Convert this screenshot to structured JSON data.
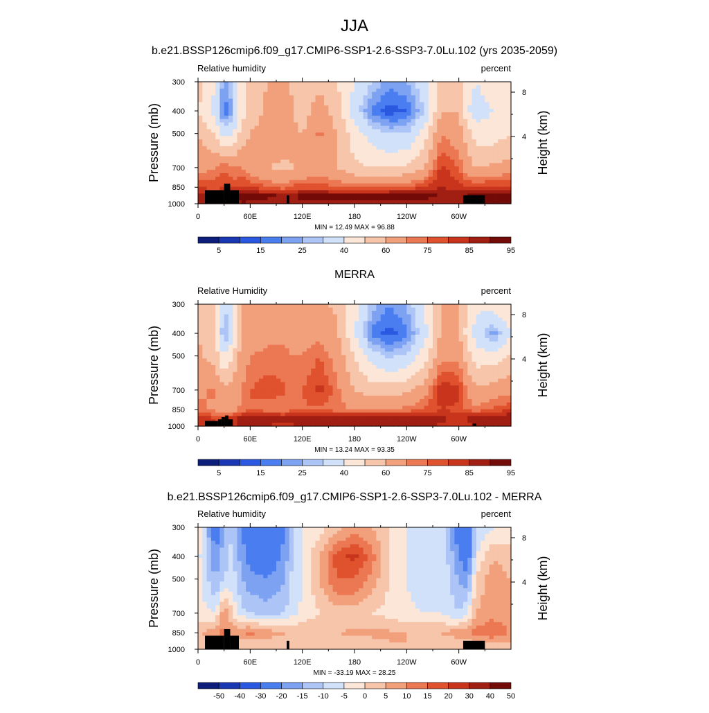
{
  "figure_title": "JJA",
  "colors": {
    "scale_abs": [
      "#0c1e7a",
      "#1a37b4",
      "#2a58e0",
      "#4a7ef0",
      "#7ea2f2",
      "#acc4f6",
      "#d2e1fa",
      "#fbe6d8",
      "#f7c5aa",
      "#f2a07b",
      "#ec7853",
      "#e0512e",
      "#c8351c",
      "#a11e12",
      "#730b08"
    ],
    "scale_diff": [
      "#0c1e7a",
      "#1a37b4",
      "#2a58e0",
      "#4a7ef0",
      "#7ea2f2",
      "#acc4f6",
      "#d2e1fa",
      "#fbe6d8",
      "#f7c5aa",
      "#f2a07b",
      "#ec7853",
      "#e0512e",
      "#c8351c",
      "#a11e12",
      "#730b08"
    ],
    "topography": "#000000"
  },
  "chart_data": [
    {
      "type": "heatmap",
      "title": "b.e21.BSSP126cmip6.f09_g17.CMIP6-SSP1-2.6-SSP3-7.0Lu.102 (yrs 2035-2059)",
      "left_label": "Relative humidity",
      "right_label": "percent",
      "ylabel": "Pressure (mb)",
      "ylabel_right": "Height (km)",
      "x_ticks": [
        "0",
        "60E",
        "120E",
        "180",
        "120W",
        "60W"
      ],
      "y_ticks": [
        "300",
        "400",
        "500",
        "700",
        "850",
        "1000"
      ],
      "y_right_ticks": [
        "8",
        "4"
      ],
      "stats": "MIN =  12.49  MAX =  96.88",
      "colorbar_levels": [
        "5",
        "15",
        "25",
        "40",
        "60",
        "75",
        "85",
        "95"
      ],
      "colorbar_kind": "abs",
      "field": {
        "lon": [
          0,
          20,
          30,
          40,
          50,
          60,
          80,
          100,
          110,
          120,
          140,
          160,
          180,
          200,
          220,
          240,
          260,
          280,
          300,
          310,
          320,
          340,
          360
        ],
        "p": [
          300,
          400,
          500,
          700,
          850,
          925,
          1000
        ],
        "values": [
          [
            55,
            40,
            22,
            30,
            45,
            55,
            60,
            62,
            58,
            55,
            58,
            50,
            40,
            30,
            22,
            25,
            35,
            55,
            60,
            45,
            40,
            45,
            50
          ],
          [
            50,
            35,
            15,
            25,
            45,
            55,
            62,
            65,
            60,
            55,
            65,
            55,
            35,
            18,
            12,
            15,
            30,
            60,
            60,
            40,
            35,
            40,
            45
          ],
          [
            60,
            50,
            35,
            40,
            55,
            60,
            65,
            65,
            62,
            60,
            72,
            60,
            45,
            35,
            30,
            30,
            45,
            70,
            65,
            55,
            45,
            45,
            50
          ],
          [
            65,
            70,
            75,
            70,
            70,
            65,
            60,
            58,
            60,
            60,
            65,
            60,
            52,
            50,
            50,
            52,
            60,
            82,
            75,
            65,
            60,
            62,
            65
          ],
          [
            80,
            78,
            80,
            78,
            82,
            80,
            75,
            72,
            78,
            78,
            78,
            76,
            75,
            75,
            75,
            76,
            80,
            85,
            82,
            80,
            80,
            82,
            82
          ],
          [
            88,
            85,
            88,
            90,
            92,
            92,
            92,
            90,
            90,
            92,
            92,
            92,
            92,
            93,
            94,
            95,
            92,
            90,
            88,
            90,
            93,
            95,
            95
          ],
          [
            88,
            85,
            86,
            88,
            90,
            88,
            86,
            85,
            86,
            88,
            88,
            88,
            88,
            88,
            88,
            88,
            88,
            86,
            85,
            88,
            90,
            92,
            92
          ]
        ]
      },
      "topo_blocks": [
        [
          8,
          30,
          875,
          1000
        ],
        [
          30,
          37,
          820,
          1000
        ],
        [
          37,
          47,
          875,
          1000
        ],
        [
          102,
          105,
          920,
          1000
        ],
        [
          305,
          330,
          920,
          1000
        ]
      ]
    },
    {
      "type": "heatmap",
      "title": "MERRA",
      "left_label": "Relative Humidity",
      "right_label": "percent",
      "ylabel": "Pressure (mb)",
      "ylabel_right": "Height (km)",
      "x_ticks": [
        "0",
        "60E",
        "120E",
        "180",
        "120W",
        "60W"
      ],
      "y_ticks": [
        "300",
        "400",
        "500",
        "700",
        "850",
        "1000"
      ],
      "y_right_ticks": [
        "8",
        "4"
      ],
      "stats": "MIN =  13.24  MAX =  93.35",
      "colorbar_levels": [
        "5",
        "15",
        "25",
        "40",
        "60",
        "75",
        "85",
        "95"
      ],
      "colorbar_kind": "abs",
      "field": {
        "lon": [
          0,
          20,
          30,
          40,
          50,
          60,
          80,
          100,
          110,
          120,
          140,
          160,
          180,
          200,
          220,
          240,
          260,
          280,
          300,
          310,
          320,
          340,
          360
        ],
        "p": [
          300,
          400,
          500,
          700,
          850,
          925,
          1000
        ],
        "values": [
          [
            55,
            50,
            30,
            40,
            60,
            65,
            65,
            65,
            62,
            62,
            62,
            58,
            45,
            28,
            20,
            25,
            40,
            60,
            60,
            50,
            42,
            45,
            50
          ],
          [
            60,
            50,
            22,
            35,
            60,
            65,
            68,
            68,
            66,
            66,
            68,
            62,
            40,
            18,
            13,
            18,
            35,
            62,
            62,
            45,
            35,
            22,
            40
          ],
          [
            62,
            55,
            40,
            50,
            65,
            70,
            72,
            72,
            70,
            70,
            75,
            66,
            50,
            35,
            28,
            32,
            45,
            68,
            68,
            55,
            45,
            45,
            52
          ],
          [
            68,
            72,
            62,
            66,
            70,
            75,
            78,
            76,
            72,
            75,
            82,
            72,
            60,
            55,
            56,
            58,
            65,
            85,
            82,
            70,
            62,
            65,
            68
          ],
          [
            72,
            68,
            60,
            65,
            72,
            75,
            72,
            70,
            75,
            74,
            74,
            72,
            70,
            70,
            70,
            72,
            76,
            80,
            78,
            74,
            72,
            76,
            80
          ],
          [
            84,
            80,
            78,
            84,
            88,
            90,
            90,
            88,
            88,
            90,
            90,
            90,
            90,
            90,
            90,
            90,
            88,
            86,
            84,
            86,
            88,
            90,
            90
          ],
          [
            82,
            80,
            80,
            82,
            86,
            86,
            84,
            82,
            84,
            86,
            86,
            86,
            86,
            86,
            86,
            86,
            86,
            84,
            82,
            84,
            86,
            88,
            88
          ]
        ]
      },
      "topo_blocks": [
        [
          8,
          23,
          950,
          1000
        ],
        [
          23,
          27,
          935,
          1000
        ],
        [
          27,
          31,
          915,
          1000
        ],
        [
          31,
          35,
          900,
          1000
        ],
        [
          35,
          40,
          935,
          1000
        ],
        [
          316,
          320,
          975,
          1000
        ]
      ]
    },
    {
      "type": "heatmap",
      "title": "b.e21.BSSP126cmip6.f09_g17.CMIP6-SSP1-2.6-SSP3-7.0Lu.102 - MERRA",
      "left_label": "Relative humidity",
      "right_label": "percent",
      "ylabel": "Pressure (mb)",
      "ylabel_right": "Height (km)",
      "x_ticks": [
        "0",
        "60E",
        "120E",
        "180",
        "120W",
        "60W"
      ],
      "y_ticks": [
        "300",
        "400",
        "500",
        "700",
        "850",
        "1000"
      ],
      "y_right_ticks": [
        "8",
        "4"
      ],
      "stats": "MIN = -33.19  MAX =  28.25",
      "colorbar_levels": [
        "-50",
        "-40",
        "-30",
        "-20",
        "-15",
        "-10",
        "-5",
        "0",
        "5",
        "10",
        "15",
        "20",
        "30",
        "40",
        "50"
      ],
      "colorbar_kind": "diff",
      "field": {
        "lon": [
          0,
          20,
          30,
          40,
          50,
          60,
          80,
          100,
          110,
          120,
          140,
          160,
          180,
          200,
          220,
          240,
          260,
          280,
          300,
          310,
          320,
          340,
          360
        ],
        "p": [
          300,
          400,
          500,
          700,
          850,
          925,
          1000
        ],
        "values": [
          [
            0,
            -25,
            -15,
            -10,
            -20,
            -25,
            -30,
            -20,
            -10,
            -5,
            -2,
            2,
            8,
            5,
            0,
            -5,
            -5,
            -5,
            -25,
            -30,
            -10,
            -5,
            -2
          ],
          [
            -3,
            -20,
            -12,
            -8,
            -18,
            -22,
            -25,
            -18,
            -8,
            -5,
            5,
            18,
            22,
            12,
            0,
            -5,
            -8,
            -5,
            -20,
            -25,
            -5,
            5,
            2
          ],
          [
            -2,
            -15,
            -10,
            -8,
            -15,
            -18,
            -20,
            -15,
            -8,
            -5,
            5,
            15,
            15,
            8,
            0,
            -5,
            -8,
            -5,
            -15,
            -18,
            2,
            8,
            5
          ],
          [
            -3,
            -5,
            10,
            0,
            -8,
            -10,
            -12,
            -10,
            -6,
            -4,
            0,
            2,
            2,
            0,
            -2,
            -4,
            -5,
            -5,
            -10,
            -5,
            5,
            8,
            5
          ],
          [
            5,
            8,
            12,
            8,
            10,
            12,
            8,
            5,
            4,
            5,
            5,
            5,
            6,
            6,
            6,
            5,
            5,
            5,
            8,
            10,
            12,
            15,
            10
          ],
          [
            2,
            3,
            6,
            5,
            4,
            3,
            3,
            3,
            3,
            3,
            3,
            3,
            3,
            4,
            5,
            5,
            4,
            3,
            3,
            4,
            5,
            6,
            5
          ],
          [
            2,
            2,
            3,
            3,
            3,
            2,
            2,
            2,
            2,
            2,
            2,
            2,
            2,
            2,
            2,
            2,
            2,
            2,
            2,
            2,
            3,
            3,
            3
          ]
        ]
      },
      "topo_blocks": [
        [
          8,
          30,
          875,
          1000
        ],
        [
          30,
          37,
          820,
          1000
        ],
        [
          37,
          47,
          875,
          1000
        ],
        [
          102,
          105,
          920,
          1000
        ],
        [
          305,
          330,
          920,
          1000
        ]
      ]
    }
  ]
}
